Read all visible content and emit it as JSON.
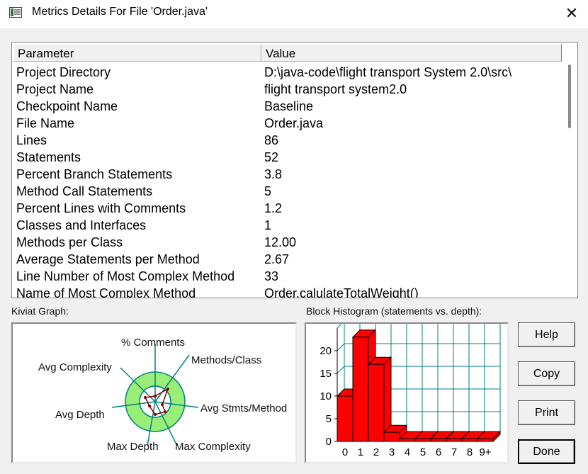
{
  "window": {
    "title": "Metrics Details For File 'Order.java'",
    "close_glyph": "✕"
  },
  "table": {
    "headers": [
      "Parameter",
      "Value"
    ],
    "rows": [
      [
        "Project Directory",
        "D:\\java-code\\flight transport System 2.0\\src\\"
      ],
      [
        "Project Name",
        "flight transport system2.0"
      ],
      [
        "Checkpoint Name",
        "Baseline"
      ],
      [
        "File Name",
        "Order.java"
      ],
      [
        "Lines",
        "86"
      ],
      [
        "Statements",
        "52"
      ],
      [
        "Percent Branch Statements",
        "3.8"
      ],
      [
        "Method Call Statements",
        "5"
      ],
      [
        "Percent Lines with Comments",
        "1.2"
      ],
      [
        "Classes and Interfaces",
        "1"
      ],
      [
        "Methods per Class",
        "12.00"
      ],
      [
        "Average Statements per Method",
        "2.67"
      ],
      [
        "Line Number of Most Complex Method",
        "33"
      ],
      [
        "Name of Most Complex Method",
        "Order.calulateTotalWeight()"
      ]
    ]
  },
  "kiviat": {
    "label": "Kiviat Graph:",
    "axes": [
      "% Comments",
      "Methods/Class",
      "Avg Stmts/Method",
      "Max Complexity",
      "Max Depth",
      "Avg Depth",
      "Avg Complexity"
    ],
    "ring_color": "#99ee77",
    "axis_color": "#008080",
    "plot_color": "#800000"
  },
  "histogram": {
    "label": "Block Histogram (statements vs. depth):",
    "bar_color": "#ff0000",
    "grid_color": "#008080"
  },
  "chart_data": {
    "type": "bar",
    "categories": [
      "0",
      "1",
      "2",
      "3",
      "4",
      "5",
      "6",
      "7",
      "8",
      "9+"
    ],
    "values": [
      10,
      23,
      17,
      2,
      0,
      0,
      0,
      0,
      0,
      0
    ],
    "title": "Block Histogram (statements vs. depth):",
    "xlabel": "",
    "ylabel": "",
    "ylim": [
      0,
      25
    ],
    "yticks": [
      "0",
      "5",
      "10",
      "15",
      "20"
    ],
    "grid": true
  },
  "buttons": {
    "help": "Help",
    "copy": "Copy",
    "print": "Print",
    "done": "Done"
  }
}
